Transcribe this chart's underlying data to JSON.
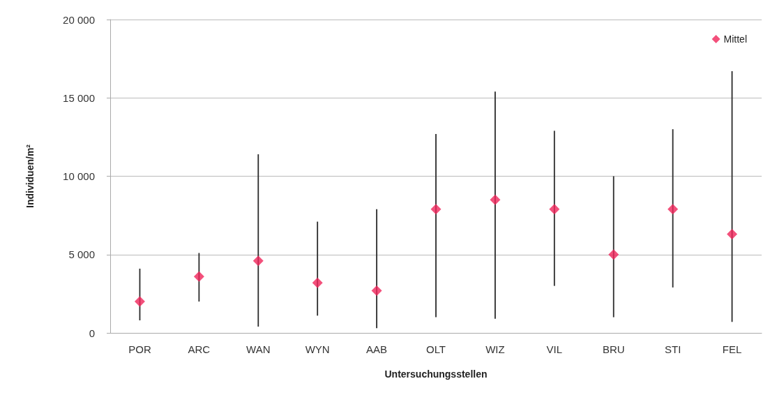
{
  "chart_data": {
    "type": "scatter",
    "xlabel": "Untersuchungsstellen",
    "ylabel": "Individuen/m²",
    "categories": [
      "POR",
      "ARC",
      "WAN",
      "WYN",
      "AAB",
      "OLT",
      "WIZ",
      "VIL",
      "BRU",
      "STI",
      "FEL"
    ],
    "series": [
      {
        "name": "Mittel",
        "color": "#f0245a",
        "values": [
          2000,
          3600,
          4600,
          3200,
          2700,
          7900,
          8500,
          7900,
          5000,
          7900,
          6300
        ],
        "errors": [
          [
            800,
            4100
          ],
          [
            2000,
            5100
          ],
          [
            400,
            11400
          ],
          [
            1100,
            7100
          ],
          [
            300,
            7900
          ],
          [
            1000,
            12700
          ],
          [
            900,
            15400
          ],
          [
            3000,
            12900
          ],
          [
            1000,
            10000
          ],
          [
            2900,
            13000
          ],
          [
            700,
            16700
          ]
        ]
      }
    ],
    "ylim": [
      0,
      20000
    ],
    "yticks": [
      {
        "value": 0,
        "label": "0"
      },
      {
        "value": 5000,
        "label": "5 000"
      },
      {
        "value": 10000,
        "label": "10 000"
      },
      {
        "value": 15000,
        "label": "15 000"
      },
      {
        "value": 20000,
        "label": "20 000"
      }
    ],
    "grid": "y",
    "legend": "top right",
    "marker": "diamond"
  }
}
